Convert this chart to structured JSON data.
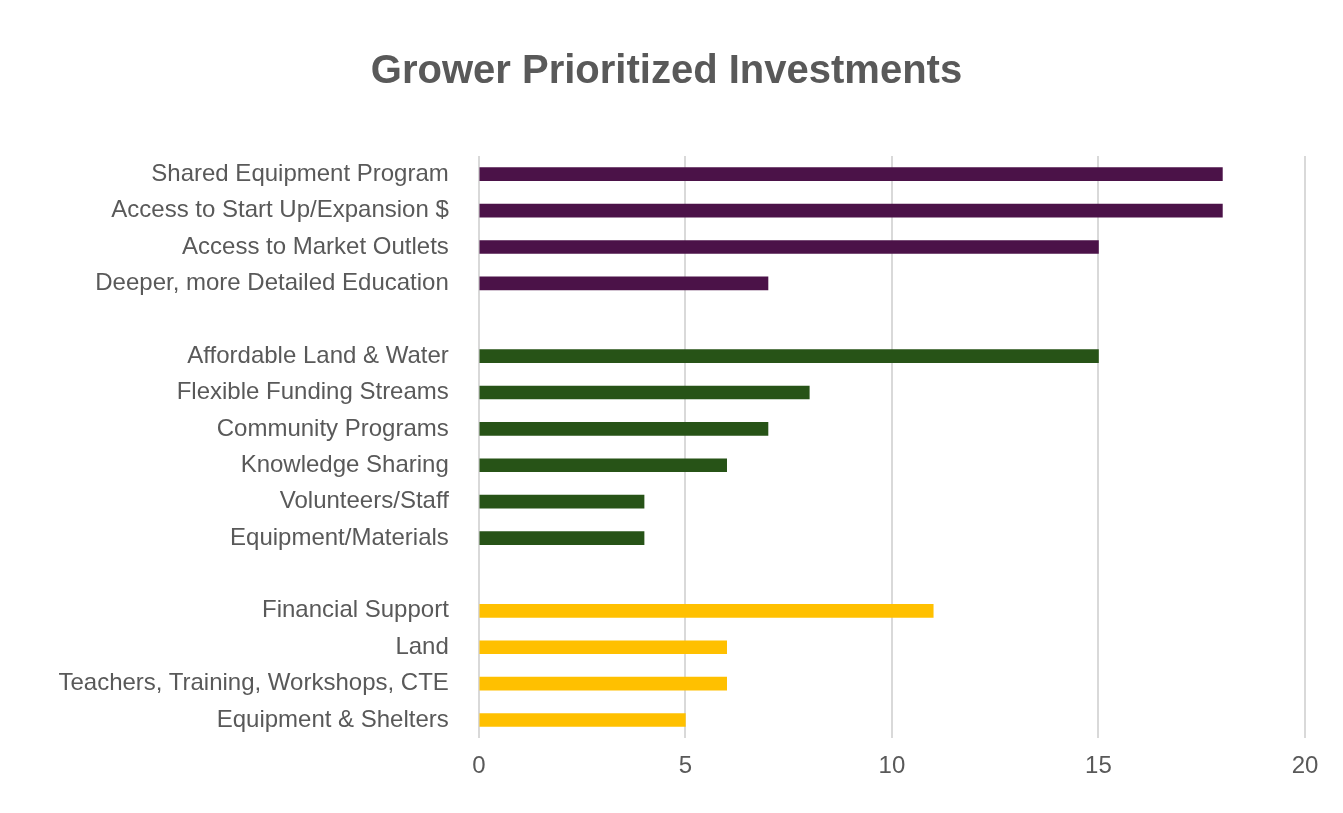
{
  "chart_data": {
    "type": "bar",
    "orientation": "horizontal",
    "title": "Grower Prioritized Investments",
    "categories": [
      "Shared Equipment Program",
      "Access to Start Up/Expansion $",
      "Access to Market Outlets",
      "Deeper, more Detailed Education",
      null,
      "Affordable Land & Water",
      "Flexible Funding Streams",
      "Community Programs",
      "Knowledge Sharing",
      "Volunteers/Staff",
      "Equipment/Materials",
      null,
      "Financial Support",
      "Land",
      "Teachers, Training, Workshops, CTE",
      "Equipment & Shelters"
    ],
    "values": [
      18,
      18,
      15,
      7,
      null,
      15,
      8,
      7,
      6,
      4,
      4,
      null,
      11,
      6,
      6,
      5
    ],
    "colors": [
      "#4b1248",
      "#4b1248",
      "#4b1248",
      "#4b1248",
      "#4b1248",
      "#275317",
      "#275317",
      "#275317",
      "#275317",
      "#275317",
      "#275317",
      "#275317",
      "#ffc000",
      "#ffc000",
      "#ffc000",
      "#ffc000"
    ],
    "xlim": [
      0,
      20
    ],
    "xticks": [
      0,
      5,
      10,
      15,
      20
    ],
    "grid": "x",
    "legend": false
  }
}
